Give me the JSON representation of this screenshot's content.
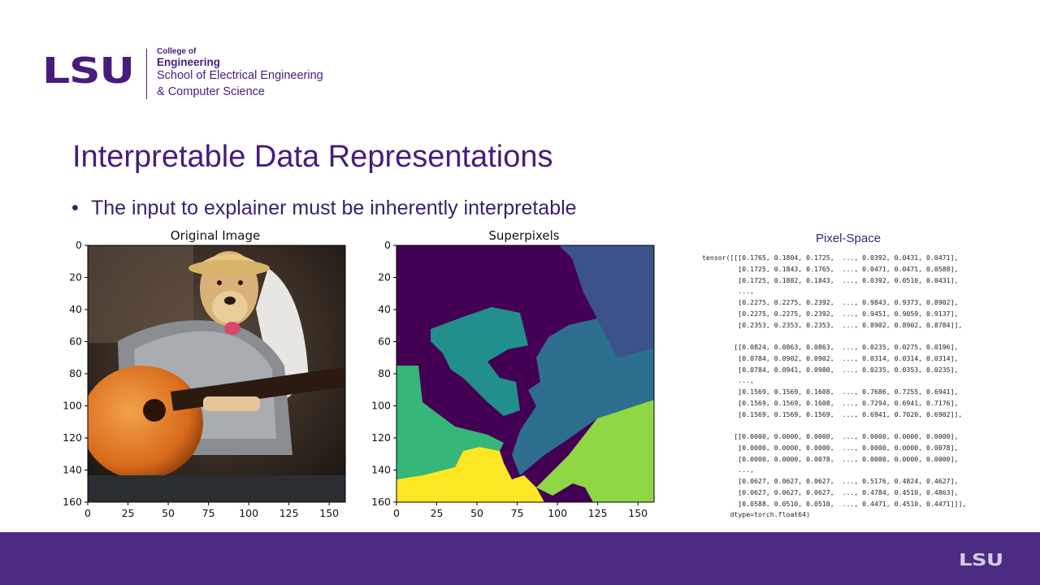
{
  "header": {
    "logo_mark": "LSU",
    "logo_line1": "College of",
    "logo_line2": "Engineering",
    "logo_line3": "School of Electrical Engineering",
    "logo_line4": "& Computer Science"
  },
  "slide": {
    "title": "Interpretable Data Representations",
    "bullet": "The input to explainer must be inherently interpretable"
  },
  "chart_data": [
    {
      "type": "image",
      "title": "Original Image",
      "xticks": [
        "0",
        "25",
        "50",
        "75",
        "100",
        "125",
        "150"
      ],
      "yticks": [
        "0",
        "20",
        "40",
        "60",
        "80",
        "100",
        "120",
        "140",
        "160"
      ],
      "xlim": [
        0,
        160
      ],
      "ylim": [
        160,
        0
      ]
    },
    {
      "type": "image",
      "title": "Superpixels",
      "xticks": [
        "0",
        "25",
        "50",
        "75",
        "100",
        "125",
        "150"
      ],
      "yticks": [
        "0",
        "20",
        "40",
        "60",
        "80",
        "100",
        "120",
        "140",
        "160"
      ],
      "xlim": [
        0,
        160
      ],
      "ylim": [
        160,
        0
      ],
      "segment_colors": [
        "#440154",
        "#3b528b",
        "#21908d",
        "#2e6e8e",
        "#35b779",
        "#8fd744",
        "#fde725"
      ]
    }
  ],
  "pixel_space": {
    "title": "Pixel-Space",
    "lines": [
      "tensor([[[0.1765, 0.1804, 0.1725,  ..., 0.0392, 0.0431, 0.0471],",
      "         [0.1725, 0.1843, 0.1765,  ..., 0.0471, 0.0471, 0.0588],",
      "         [0.1725, 0.1882, 0.1843,  ..., 0.0392, 0.0510, 0.0431],",
      "         ...,",
      "         [0.2275, 0.2275, 0.2392,  ..., 0.9843, 0.9373, 0.8902],",
      "         [0.2275, 0.2275, 0.2392,  ..., 0.9451, 0.9059, 0.9137],",
      "         [0.2353, 0.2353, 0.2353,  ..., 0.8902, 0.8902, 0.8784]],",
      "",
      "        [[0.0824, 0.0863, 0.0863,  ..., 0.0235, 0.0275, 0.0196],",
      "         [0.0784, 0.0902, 0.0902,  ..., 0.0314, 0.0314, 0.0314],",
      "         [0.0784, 0.0941, 0.0980,  ..., 0.0235, 0.0353, 0.0235],",
      "         ...,",
      "         [0.1569, 0.1569, 0.1608,  ..., 0.7686, 0.7255, 0.6941],",
      "         [0.1569, 0.1569, 0.1608,  ..., 0.7294, 0.6941, 0.7176],",
      "         [0.1569, 0.1569, 0.1569,  ..., 0.6941, 0.7020, 0.6902]],",
      "",
      "        [[0.0000, 0.0000, 0.0000,  ..., 0.0000, 0.0000, 0.0000],",
      "         [0.0000, 0.0000, 0.0000,  ..., 0.0000, 0.0000, 0.0078],",
      "         [0.0000, 0.0000, 0.0078,  ..., 0.0000, 0.0000, 0.0000],",
      "         ...,",
      "         [0.0627, 0.0627, 0.0627,  ..., 0.5176, 0.4824, 0.4627],",
      "         [0.0627, 0.0627, 0.0627,  ..., 0.4784, 0.4510, 0.4863],",
      "         [0.0588, 0.0510, 0.0510,  ..., 0.4471, 0.4510, 0.4471]]],",
      "       dtype=torch.float64)"
    ]
  },
  "footer": {
    "logo": "LSU",
    "color": "#4b2c82"
  }
}
